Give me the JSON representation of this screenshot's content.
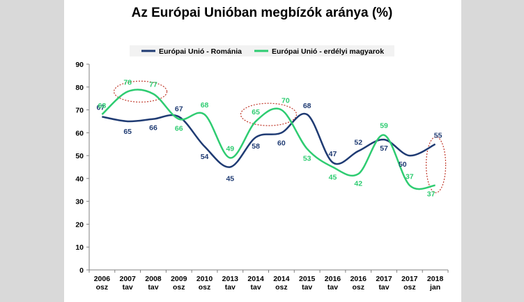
{
  "chart_data": {
    "type": "line",
    "title": "Az Európai Unióban megbízók aránya (%)",
    "categories": [
      [
        "2006",
        "osz"
      ],
      [
        "2007",
        "tav"
      ],
      [
        "2008",
        "tav"
      ],
      [
        "2009",
        "osz"
      ],
      [
        "2010",
        "osz"
      ],
      [
        "2013",
        "tav"
      ],
      [
        "2014",
        "tav"
      ],
      [
        "2014",
        "osz"
      ],
      [
        "2015",
        "tav"
      ],
      [
        "2016",
        "tav"
      ],
      [
        "2016",
        "osz"
      ],
      [
        "2017",
        "tav"
      ],
      [
        "2017",
        "osz"
      ],
      [
        "2018",
        "jan"
      ]
    ],
    "ylim": [
      0,
      90
    ],
    "yticks": [
      0,
      10,
      20,
      30,
      40,
      50,
      60,
      70,
      80,
      90
    ],
    "legend_position": "top",
    "series": [
      {
        "name": "Európai Unió - Románia",
        "color": "#1f3b73",
        "values": [
          67,
          65,
          66,
          67,
          54,
          45,
          58,
          60,
          68,
          47,
          52,
          57,
          50,
          55
        ]
      },
      {
        "name": "Európai Unió - erdélyi magyarok",
        "color": "#2ecc71",
        "values": [
          68,
          78,
          77,
          66,
          68,
          49,
          65,
          70,
          53,
          45,
          42,
          59,
          37,
          37
        ]
      }
    ],
    "highlight_color": "#c0392b"
  }
}
